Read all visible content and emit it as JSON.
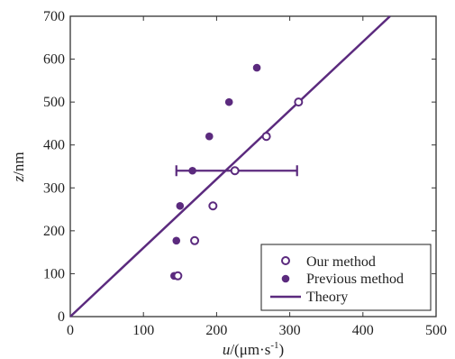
{
  "chart_data": {
    "type": "scatter",
    "xlabel_prefix": "u",
    "xlabel_rest": "/(μm·s",
    "xlabel_sup": "-1",
    "xlabel_close": ")",
    "ylabel_prefix": "z",
    "ylabel_rest": "/nm",
    "xlim": [
      0,
      500
    ],
    "ylim": [
      0,
      700
    ],
    "xticks": [
      0,
      100,
      200,
      300,
      400,
      500
    ],
    "yticks": [
      0,
      100,
      200,
      300,
      400,
      500,
      600,
      700
    ],
    "grid": false,
    "legend_position": "bottom-right",
    "colors": {
      "series": "#5b2a7e",
      "axis": "#333333"
    },
    "series": [
      {
        "name": "Our method",
        "marker": "open-circle",
        "points": [
          {
            "x": 147,
            "y": 95
          },
          {
            "x": 170,
            "y": 177
          },
          {
            "x": 195,
            "y": 258
          },
          {
            "x": 225,
            "y": 340
          },
          {
            "x": 268,
            "y": 420
          },
          {
            "x": 312,
            "y": 500
          }
        ]
      },
      {
        "name": "Previous method",
        "marker": "filled-circle",
        "points": [
          {
            "x": 142,
            "y": 95
          },
          {
            "x": 145,
            "y": 177
          },
          {
            "x": 150,
            "y": 258
          },
          {
            "x": 167,
            "y": 340
          },
          {
            "x": 190,
            "y": 420
          },
          {
            "x": 217,
            "y": 500
          },
          {
            "x": 255,
            "y": 580
          }
        ]
      },
      {
        "name": "Theory",
        "marker": "line",
        "points": [
          {
            "x": 0,
            "y": 0
          },
          {
            "x": 437,
            "y": 700
          }
        ]
      }
    ],
    "error_bar": {
      "y": 340,
      "x_min": 145,
      "x_max": 310
    }
  }
}
